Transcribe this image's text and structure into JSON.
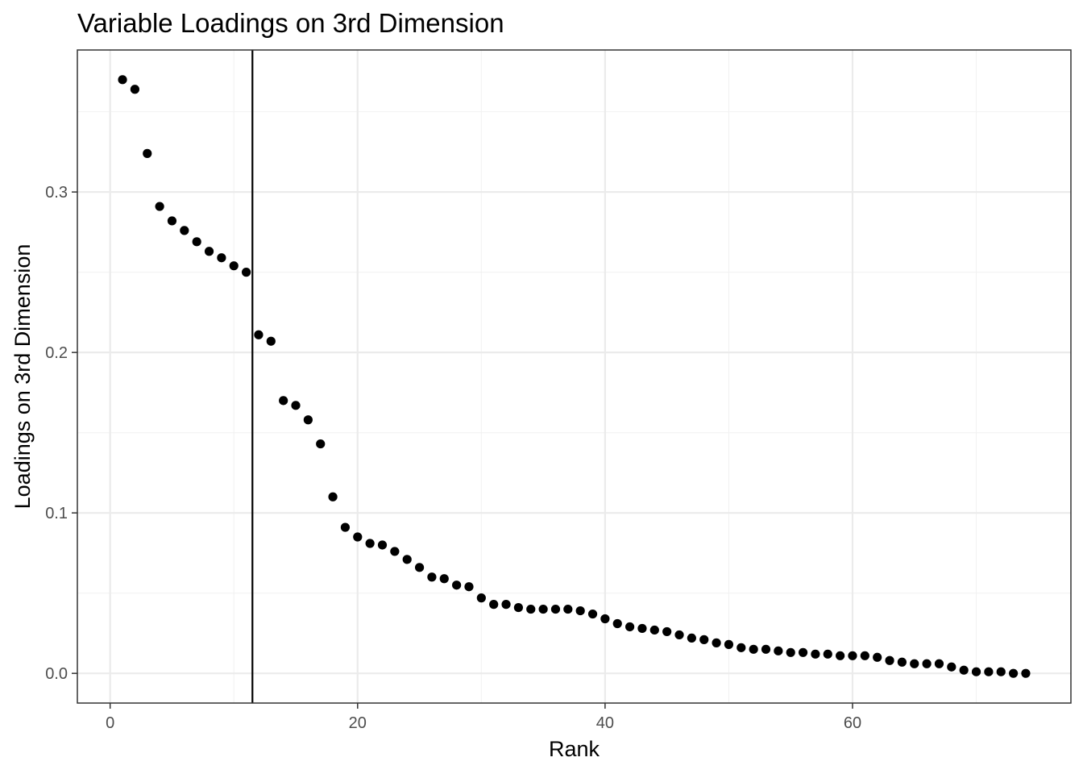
{
  "chart_data": {
    "type": "scatter",
    "title": "Variable Loadings on 3rd Dimension",
    "xlabel": "Rank",
    "ylabel": "Loadings on 3rd Dimension",
    "xlim": [
      -2.65,
      77.65
    ],
    "ylim": [
      -0.0185,
      0.3885
    ],
    "x_ticks": [
      0,
      20,
      40,
      60
    ],
    "x_tick_labels": [
      "0",
      "20",
      "40",
      "60"
    ],
    "y_ticks": [
      0.0,
      0.1,
      0.2,
      0.3
    ],
    "y_tick_labels": [
      "0.0",
      "0.1",
      "0.2",
      "0.3"
    ],
    "x_minor_ticks": [
      10,
      30,
      50,
      70
    ],
    "y_minor_ticks": [
      0.05,
      0.15,
      0.25,
      0.35
    ],
    "vline": 11.5,
    "grid": true,
    "x": [
      1,
      2,
      3,
      4,
      5,
      6,
      7,
      8,
      9,
      10,
      11,
      12,
      13,
      14,
      15,
      16,
      17,
      18,
      19,
      20,
      21,
      22,
      23,
      24,
      25,
      26,
      27,
      28,
      29,
      30,
      31,
      32,
      33,
      34,
      35,
      36,
      37,
      38,
      39,
      40,
      41,
      42,
      43,
      44,
      45,
      46,
      47,
      48,
      49,
      50,
      51,
      52,
      53,
      54,
      55,
      56,
      57,
      58,
      59,
      60,
      61,
      62,
      63,
      64,
      65,
      66,
      67,
      68,
      69,
      70,
      71,
      72,
      73,
      74
    ],
    "y": [
      0.37,
      0.364,
      0.324,
      0.291,
      0.282,
      0.276,
      0.269,
      0.263,
      0.259,
      0.254,
      0.25,
      0.211,
      0.207,
      0.17,
      0.167,
      0.158,
      0.143,
      0.11,
      0.091,
      0.085,
      0.081,
      0.08,
      0.076,
      0.071,
      0.066,
      0.06,
      0.059,
      0.055,
      0.054,
      0.047,
      0.043,
      0.043,
      0.041,
      0.04,
      0.04,
      0.04,
      0.04,
      0.039,
      0.037,
      0.034,
      0.031,
      0.029,
      0.028,
      0.027,
      0.026,
      0.024,
      0.022,
      0.021,
      0.019,
      0.018,
      0.016,
      0.015,
      0.015,
      0.014,
      0.013,
      0.013,
      0.012,
      0.012,
      0.011,
      0.011,
      0.011,
      0.01,
      0.008,
      0.007,
      0.006,
      0.006,
      0.006,
      0.004,
      0.002,
      0.001,
      0.001,
      0.001,
      0.0,
      0.0
    ]
  }
}
